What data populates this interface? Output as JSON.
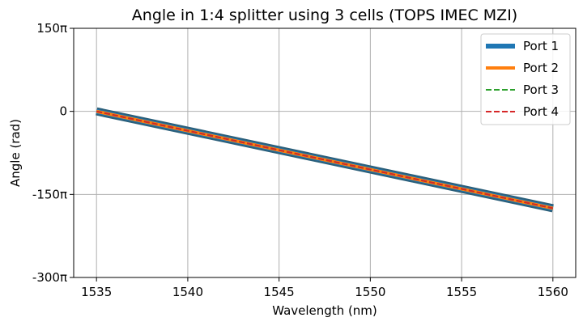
{
  "chart_data": {
    "type": "line",
    "title": "Angle in 1:4 splitter using 3 cells (TOPS IMEC MZI)",
    "xlabel": "Wavelength (nm)",
    "ylabel": "Angle (rad)",
    "xlim": [
      1533.75,
      1561.25
    ],
    "ylim": [
      -300,
      150
    ],
    "y_units": "pi",
    "xticks": [
      1535,
      1540,
      1545,
      1550,
      1555,
      1560
    ],
    "xtick_labels": [
      "1535",
      "1540",
      "1545",
      "1550",
      "1555",
      "1560"
    ],
    "yticks": [
      150,
      0,
      -150,
      -300
    ],
    "ytick_labels": [
      "150π",
      "0",
      "-150π",
      "-300π"
    ],
    "grid": true,
    "legend_position": "top-right",
    "x": [
      1535,
      1560
    ],
    "series": [
      {
        "name": "Port 1",
        "values": [
          0,
          -175
        ],
        "color": "#1f77b4",
        "style": "solid",
        "weight": "thick"
      },
      {
        "name": "Port 2",
        "values": [
          0,
          -175
        ],
        "color": "#ff7f0e",
        "style": "solid",
        "weight": "medium"
      },
      {
        "name": "Port 3",
        "values": [
          0,
          -175
        ],
        "color": "#2ca02c",
        "style": "dashed",
        "weight": "thin"
      },
      {
        "name": "Port 4",
        "values": [
          0,
          -175
        ],
        "color": "#d62728",
        "style": "dashed",
        "weight": "thin"
      }
    ]
  }
}
